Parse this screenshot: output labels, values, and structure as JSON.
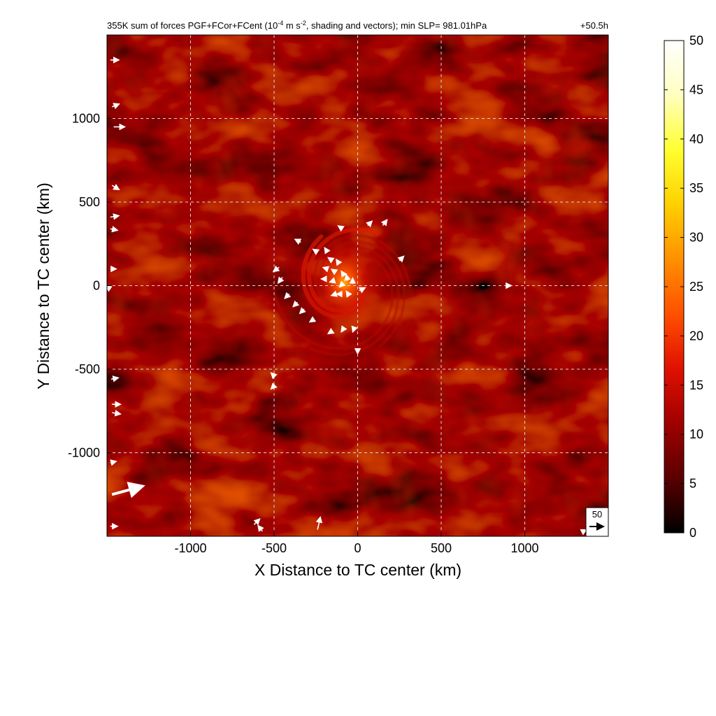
{
  "title": {
    "main_prefix": "355K sum of forces PGF+FCor+FCent (10",
    "unit_exp1": "-4",
    "unit_mid": " m s",
    "unit_exp2": "-2",
    "main_suffix": ", shading and vectors); min SLP= 981.01hPa",
    "time": "+50.5h"
  },
  "chart_data": {
    "type": "heatmap",
    "xlabel": "X Distance to TC center (km)",
    "ylabel": "Y Distance to TC center (km)",
    "xlim": [
      -1500,
      1500
    ],
    "ylim": [
      -1500,
      1500
    ],
    "x_ticks": [
      -1000,
      -500,
      0,
      500,
      1000
    ],
    "y_ticks": [
      -1000,
      -500,
      0,
      500,
      1000
    ],
    "grid": true,
    "colorbar": {
      "min": 0,
      "max": 50,
      "ticks": [
        0,
        5,
        10,
        15,
        20,
        25,
        30,
        35,
        40,
        45,
        50
      ],
      "colormap": [
        "#000000",
        "#5a0000",
        "#a00000",
        "#e01000",
        "#ff5000",
        "#ff9000",
        "#ffd000",
        "#ffff30",
        "#ffffc0",
        "#ffffff"
      ]
    },
    "reference_vector": {
      "label": "50"
    },
    "center_max_value_estimate": 30,
    "vectors": [
      {
        "x": -1480,
        "y": 1350,
        "u": 6,
        "v": 0
      },
      {
        "x": -1470,
        "y": 1070,
        "u": 5,
        "v": 2
      },
      {
        "x": -1460,
        "y": 950,
        "u": 8,
        "v": 0
      },
      {
        "x": -1470,
        "y": 600,
        "u": 5,
        "v": -3
      },
      {
        "x": -1480,
        "y": 410,
        "u": 6,
        "v": 1
      },
      {
        "x": -1480,
        "y": 340,
        "u": 5,
        "v": -1
      },
      {
        "x": -1480,
        "y": 100,
        "u": 4,
        "v": 0
      },
      {
        "x": -1480,
        "y": -20,
        "u": -3,
        "v": 2
      },
      {
        "x": -1475,
        "y": -560,
        "u": 5,
        "v": 1
      },
      {
        "x": -1470,
        "y": -710,
        "u": 6,
        "v": 0
      },
      {
        "x": -1470,
        "y": -760,
        "u": 6,
        "v": -1
      },
      {
        "x": -1480,
        "y": -1060,
        "u": 4,
        "v": 1
      },
      {
        "x": -1480,
        "y": -1440,
        "u": 5,
        "v": 0
      },
      {
        "x": -1470,
        "y": -1250,
        "u": 22,
        "v": 6
      },
      {
        "x": -620,
        "y": -1430,
        "u": 4,
        "v": 4
      },
      {
        "x": -570,
        "y": -1470,
        "u": -3,
        "v": 4
      },
      {
        "x": -240,
        "y": -1460,
        "u": 2,
        "v": 9
      },
      {
        "x": -340,
        "y": 260,
        "u": -4,
        "v": 2
      },
      {
        "x": -470,
        "y": 110,
        "u": -4,
        "v": -3
      },
      {
        "x": -450,
        "y": 50,
        "u": -3,
        "v": -4
      },
      {
        "x": -410,
        "y": -50,
        "u": -3,
        "v": -3
      },
      {
        "x": -360,
        "y": -100,
        "u": -3,
        "v": -3
      },
      {
        "x": -320,
        "y": -140,
        "u": -3,
        "v": -3
      },
      {
        "x": -260,
        "y": -200,
        "u": -3,
        "v": -2
      },
      {
        "x": -150,
        "y": -270,
        "u": -3,
        "v": -2
      },
      {
        "x": -80,
        "y": -250,
        "u": -2,
        "v": -3
      },
      {
        "x": -20,
        "y": -250,
        "u": -1,
        "v": -3
      },
      {
        "x": 0,
        "y": -380,
        "u": 0,
        "v": -3
      },
      {
        "x": -240,
        "y": 200,
        "u": -3,
        "v": 2
      },
      {
        "x": -180,
        "y": 200,
        "u": -2,
        "v": 3
      },
      {
        "x": -150,
        "y": 150,
        "u": -3,
        "v": 2
      },
      {
        "x": -110,
        "y": 130,
        "u": -2,
        "v": 3
      },
      {
        "x": -180,
        "y": 100,
        "u": -3,
        "v": 1
      },
      {
        "x": -130,
        "y": 80,
        "u": -3,
        "v": 2
      },
      {
        "x": -80,
        "y": 60,
        "u": -2,
        "v": 3
      },
      {
        "x": -190,
        "y": 40,
        "u": -3,
        "v": 0
      },
      {
        "x": -140,
        "y": 30,
        "u": -3,
        "v": -1
      },
      {
        "x": -90,
        "y": 10,
        "u": -2,
        "v": -2
      },
      {
        "x": -60,
        "y": 30,
        "u": -1,
        "v": 4
      },
      {
        "x": -30,
        "y": 10,
        "u": 0,
        "v": 4
      },
      {
        "x": -130,
        "y": -50,
        "u": -3,
        "v": -1
      },
      {
        "x": -90,
        "y": -50,
        "u": -4,
        "v": 0
      },
      {
        "x": -50,
        "y": -60,
        "u": -2,
        "v": 3
      },
      {
        "x": 10,
        "y": -30,
        "u": 4,
        "v": 2
      },
      {
        "x": 60,
        "y": 360,
        "u": 3,
        "v": 3
      },
      {
        "x": 150,
        "y": 360,
        "u": 3,
        "v": 4
      },
      {
        "x": -90,
        "y": 340,
        "u": -3,
        "v": 2
      },
      {
        "x": 250,
        "y": 150,
        "u": 3,
        "v": 3
      },
      {
        "x": 900,
        "y": 0,
        "u": 2,
        "v": 0
      },
      {
        "x": -500,
        "y": -540,
        "u": -2,
        "v": 2
      },
      {
        "x": -500,
        "y": -600,
        "u": -2,
        "v": -2
      },
      {
        "x": 1350,
        "y": -1470,
        "u": 2,
        "v": 1
      }
    ]
  }
}
